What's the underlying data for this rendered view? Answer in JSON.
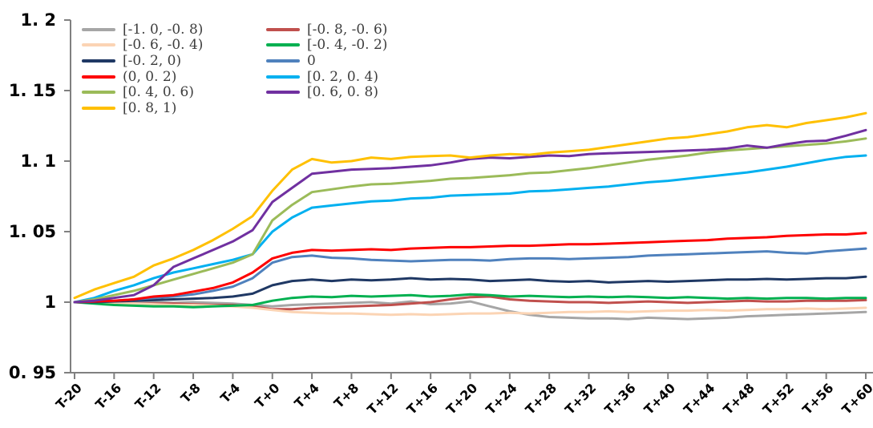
{
  "chart_data": {
    "type": "line",
    "title": "",
    "xlabel": "",
    "ylabel": "",
    "xlim": [
      -20,
      60
    ],
    "ylim": [
      0.95,
      1.2
    ],
    "grid": false,
    "legend_position": "top-left-inside",
    "y_ticks": [
      {
        "value": 1.2,
        "label": "1. 2"
      },
      {
        "value": 1.15,
        "label": "1. 15"
      },
      {
        "value": 1.1,
        "label": "1. 1"
      },
      {
        "value": 1.05,
        "label": "1. 05"
      },
      {
        "value": 1.0,
        "label": "1"
      },
      {
        "value": 0.95,
        "label": "0. 95"
      }
    ],
    "x_ticks": [
      {
        "value": -20,
        "label": "T-20"
      },
      {
        "value": -16,
        "label": "T-16"
      },
      {
        "value": -12,
        "label": "T-12"
      },
      {
        "value": -8,
        "label": "T-8"
      },
      {
        "value": -4,
        "label": "T-4"
      },
      {
        "value": 0,
        "label": "T+0"
      },
      {
        "value": 4,
        "label": "T+4"
      },
      {
        "value": 8,
        "label": "T+8"
      },
      {
        "value": 12,
        "label": "T+12"
      },
      {
        "value": 16,
        "label": "T+16"
      },
      {
        "value": 20,
        "label": "T+20"
      },
      {
        "value": 24,
        "label": "T+24"
      },
      {
        "value": 28,
        "label": "T+28"
      },
      {
        "value": 32,
        "label": "T+32"
      },
      {
        "value": 36,
        "label": "T+36"
      },
      {
        "value": 40,
        "label": "T+40"
      },
      {
        "value": 44,
        "label": "T+44"
      },
      {
        "value": 48,
        "label": "T+48"
      },
      {
        "value": 52,
        "label": "T+52"
      },
      {
        "value": 56,
        "label": "T+56"
      },
      {
        "value": 60,
        "label": "T+60"
      }
    ],
    "legend": [
      {
        "label": "[-1. 0, -0. 8)",
        "color": "#A6A6A6"
      },
      {
        "label": "[-0. 8, -0. 6)",
        "color": "#C0504D"
      },
      {
        "label": "[-0. 6, -0. 4)",
        "color": "#FBD4B4"
      },
      {
        "label": "[-0. 4, -0. 2)",
        "color": "#00B050"
      },
      {
        "label": "[-0. 2, 0)",
        "color": "#1F3864"
      },
      {
        "label": "0",
        "color": "#4F81BD"
      },
      {
        "label": "(0, 0. 2)",
        "color": "#FE0000"
      },
      {
        "label": "[0. 2, 0. 4)",
        "color": "#00B0F0"
      },
      {
        "label": "[0. 4, 0. 6)",
        "color": "#9BBB59"
      },
      {
        "label": "[0. 6, 0. 8)",
        "color": "#7030A0"
      },
      {
        "label": "[0. 8, 1)",
        "color": "#FFC000"
      }
    ],
    "x": [
      -20,
      -18,
      -16,
      -14,
      -12,
      -10,
      -8,
      -6,
      -4,
      -2,
      0,
      2,
      4,
      6,
      8,
      10,
      12,
      14,
      16,
      18,
      20,
      22,
      24,
      26,
      28,
      30,
      32,
      34,
      36,
      38,
      40,
      42,
      44,
      46,
      48,
      50,
      52,
      54,
      56,
      58,
      60
    ],
    "series": [
      {
        "name": "[-1. 0, -0. 8)",
        "color": "#A6A6A6",
        "values": [
          1.0,
          1.0,
          1.0,
          0.9995,
          1.0,
          0.9995,
          1.0,
          0.9995,
          0.999,
          0.998,
          0.997,
          0.998,
          0.9985,
          0.999,
          0.9995,
          1.0,
          0.999,
          1.0005,
          0.9985,
          0.999,
          1.0005,
          0.997,
          0.9935,
          0.991,
          0.9895,
          0.989,
          0.9885,
          0.9885,
          0.988,
          0.989,
          0.9885,
          0.988,
          0.9885,
          0.989,
          0.99,
          0.9905,
          0.991,
          0.9915,
          0.992,
          0.9925,
          0.993
        ]
      },
      {
        "name": "[-0. 8, -0. 6)",
        "color": "#C0504D",
        "values": [
          1.0,
          1.0,
          0.9995,
          0.999,
          0.999,
          0.999,
          0.9985,
          0.998,
          0.998,
          0.997,
          0.995,
          0.995,
          0.996,
          0.9965,
          0.997,
          0.9975,
          0.998,
          0.999,
          1.0,
          1.002,
          1.0035,
          1.004,
          1.002,
          1.001,
          1.0005,
          1.0,
          1.0,
          0.9995,
          1.0,
          1.0005,
          1.0,
          0.9995,
          1.0,
          1.0005,
          1.001,
          1.0005,
          1.0005,
          1.001,
          1.001,
          1.001,
          1.0015
        ]
      },
      {
        "name": "[-0. 6, -0. 4)",
        "color": "#FBD4B4",
        "values": [
          1.0,
          0.9995,
          0.999,
          0.999,
          0.9985,
          0.998,
          0.998,
          0.9975,
          0.997,
          0.996,
          0.9945,
          0.993,
          0.9925,
          0.992,
          0.992,
          0.9915,
          0.991,
          0.9915,
          0.991,
          0.9915,
          0.992,
          0.992,
          0.9925,
          0.992,
          0.9925,
          0.993,
          0.993,
          0.9935,
          0.993,
          0.9935,
          0.994,
          0.994,
          0.9945,
          0.994,
          0.9945,
          0.995,
          0.995,
          0.9955,
          0.995,
          0.9955,
          0.996
        ]
      },
      {
        "name": "[-0. 4, -0. 2)",
        "color": "#00B050",
        "values": [
          1.0,
          0.999,
          0.998,
          0.9975,
          0.997,
          0.997,
          0.9965,
          0.997,
          0.9975,
          0.998,
          1.001,
          1.003,
          1.004,
          1.0035,
          1.0045,
          1.004,
          1.0045,
          1.005,
          1.004,
          1.0045,
          1.0055,
          1.005,
          1.004,
          1.0045,
          1.004,
          1.0035,
          1.004,
          1.0035,
          1.004,
          1.0035,
          1.003,
          1.0035,
          1.003,
          1.0025,
          1.003,
          1.0025,
          1.003,
          1.003,
          1.0025,
          1.003,
          1.003
        ]
      },
      {
        "name": "[-0. 2, 0)",
        "color": "#1F3864",
        "values": [
          1.0,
          1.0,
          1.0005,
          1.001,
          1.0015,
          1.002,
          1.0025,
          1.003,
          1.004,
          1.006,
          1.012,
          1.015,
          1.016,
          1.015,
          1.016,
          1.0155,
          1.016,
          1.017,
          1.016,
          1.0165,
          1.016,
          1.015,
          1.0155,
          1.016,
          1.015,
          1.0145,
          1.015,
          1.014,
          1.0145,
          1.015,
          1.0145,
          1.015,
          1.0155,
          1.016,
          1.016,
          1.0165,
          1.016,
          1.0165,
          1.017,
          1.017,
          1.018
        ]
      },
      {
        "name": "0",
        "color": "#4F81BD",
        "values": [
          1.0,
          1.0005,
          1.001,
          1.002,
          1.003,
          1.004,
          1.0055,
          1.008,
          1.011,
          1.017,
          1.028,
          1.032,
          1.033,
          1.0315,
          1.031,
          1.03,
          1.0295,
          1.029,
          1.0295,
          1.03,
          1.03,
          1.0295,
          1.0305,
          1.031,
          1.031,
          1.0305,
          1.031,
          1.0315,
          1.032,
          1.033,
          1.0335,
          1.034,
          1.0345,
          1.035,
          1.0355,
          1.036,
          1.035,
          1.0345,
          1.036,
          1.037,
          1.038
        ]
      },
      {
        "name": "(0, 0. 2)",
        "color": "#FE0000",
        "values": [
          1.0,
          1.0005,
          1.001,
          1.002,
          1.004,
          1.005,
          1.0075,
          1.01,
          1.014,
          1.021,
          1.031,
          1.035,
          1.037,
          1.0365,
          1.037,
          1.0375,
          1.037,
          1.038,
          1.0385,
          1.039,
          1.039,
          1.0395,
          1.04,
          1.04,
          1.0405,
          1.041,
          1.041,
          1.0415,
          1.042,
          1.0425,
          1.043,
          1.0435,
          1.044,
          1.045,
          1.0455,
          1.046,
          1.047,
          1.0475,
          1.048,
          1.048,
          1.049
        ]
      },
      {
        "name": "[0. 2, 0. 4)",
        "color": "#00B0F0",
        "values": [
          1.0,
          1.003,
          1.008,
          1.012,
          1.017,
          1.021,
          1.024,
          1.027,
          1.03,
          1.034,
          1.05,
          1.06,
          1.067,
          1.0685,
          1.07,
          1.0715,
          1.072,
          1.0735,
          1.074,
          1.0755,
          1.076,
          1.0765,
          1.077,
          1.0785,
          1.079,
          1.08,
          1.081,
          1.082,
          1.0835,
          1.085,
          1.086,
          1.0875,
          1.089,
          1.0905,
          1.092,
          1.094,
          1.096,
          1.0985,
          1.101,
          1.103,
          1.104
        ]
      },
      {
        "name": "[0. 4, 0. 6)",
        "color": "#9BBB59",
        "values": [
          1.0,
          1.002,
          1.005,
          1.008,
          1.012,
          1.016,
          1.02,
          1.024,
          1.028,
          1.034,
          1.058,
          1.069,
          1.078,
          1.08,
          1.082,
          1.0835,
          1.084,
          1.085,
          1.086,
          1.0875,
          1.088,
          1.089,
          1.09,
          1.0915,
          1.092,
          1.0935,
          1.095,
          1.097,
          1.099,
          1.101,
          1.1025,
          1.104,
          1.106,
          1.1075,
          1.1085,
          1.1095,
          1.1105,
          1.1115,
          1.1125,
          1.114,
          1.116
        ]
      },
      {
        "name": "[0. 6, 0. 8)",
        "color": "#7030A0",
        "values": [
          1.0,
          1.001,
          1.003,
          1.005,
          1.012,
          1.025,
          1.031,
          1.037,
          1.043,
          1.051,
          1.071,
          1.081,
          1.091,
          1.0925,
          1.094,
          1.0945,
          1.095,
          1.096,
          1.097,
          1.099,
          1.1015,
          1.1025,
          1.102,
          1.103,
          1.104,
          1.1035,
          1.105,
          1.1055,
          1.106,
          1.1065,
          1.107,
          1.1075,
          1.108,
          1.109,
          1.111,
          1.1095,
          1.112,
          1.114,
          1.1145,
          1.118,
          1.122
        ]
      },
      {
        "name": "[0. 8, 1)",
        "color": "#FFC000",
        "values": [
          1.003,
          1.009,
          1.0135,
          1.018,
          1.026,
          1.031,
          1.037,
          1.044,
          1.052,
          1.061,
          1.079,
          1.094,
          1.1015,
          1.099,
          1.1,
          1.1025,
          1.1015,
          1.103,
          1.1035,
          1.104,
          1.1025,
          1.104,
          1.105,
          1.1045,
          1.106,
          1.107,
          1.108,
          1.11,
          1.112,
          1.114,
          1.116,
          1.117,
          1.119,
          1.121,
          1.124,
          1.1255,
          1.124,
          1.127,
          1.129,
          1.131,
          1.134
        ]
      }
    ]
  }
}
